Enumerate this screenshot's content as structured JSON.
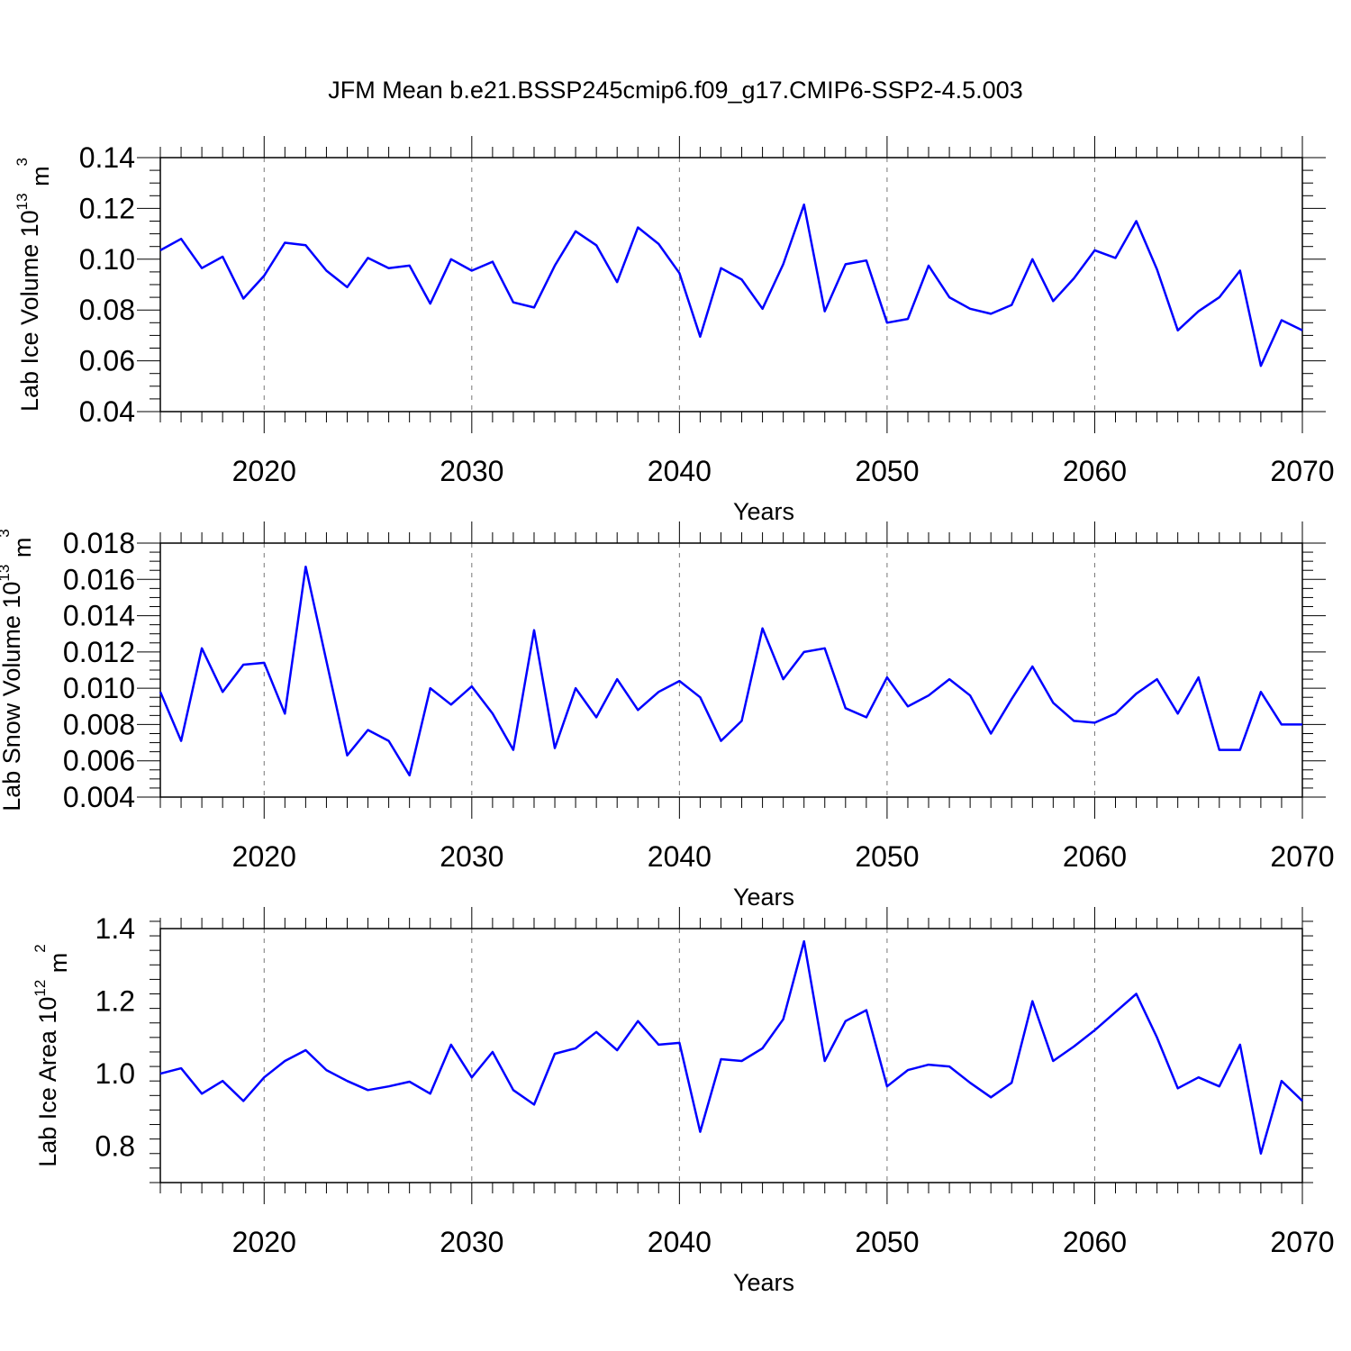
{
  "title": "JFM Mean b.e21.BSSP245cmip6.f09_g17.CMIP6-SSP2-4.5.003",
  "colors": {
    "line": "#0000ff",
    "axis": "#000000",
    "grid": "#777777"
  },
  "chart_data": [
    {
      "type": "line",
      "xlabel": "Years",
      "ylabel": "Lab Ice Volume 10",
      "ylabel_sup1": "13",
      "ylabel_mid": " m",
      "ylabel_sup2": "3",
      "xlim": [
        2015,
        2070
      ],
      "ylim": [
        0.04,
        0.14
      ],
      "xticks": [
        "2020",
        "2030",
        "2040",
        "2050",
        "2060",
        "2070"
      ],
      "yticks": [
        "0.04",
        "0.06",
        "0.08",
        "0.10",
        "0.12",
        "0.14"
      ],
      "ytick_values": [
        0.04,
        0.06,
        0.08,
        0.1,
        0.12,
        0.14
      ],
      "yminor_step": 0.005,
      "grid": "vertical dashed at major x ticks",
      "x": [
        2015,
        2016,
        2017,
        2018,
        2019,
        2020,
        2021,
        2022,
        2023,
        2024,
        2025,
        2026,
        2027,
        2028,
        2029,
        2030,
        2031,
        2032,
        2033,
        2034,
        2035,
        2036,
        2037,
        2038,
        2039,
        2040,
        2041,
        2042,
        2043,
        2044,
        2045,
        2046,
        2047,
        2048,
        2049,
        2050,
        2051,
        2052,
        2053,
        2054,
        2055,
        2056,
        2057,
        2058,
        2059,
        2060,
        2061,
        2062,
        2063,
        2064,
        2065,
        2066,
        2067,
        2068,
        2069,
        2070
      ],
      "values": [
        0.1035,
        0.108,
        0.0965,
        0.101,
        0.0845,
        0.0935,
        0.1065,
        0.1055,
        0.0955,
        0.089,
        0.1005,
        0.0965,
        0.0975,
        0.0825,
        0.1,
        0.0955,
        0.099,
        0.083,
        0.081,
        0.0975,
        0.111,
        0.1055,
        0.091,
        0.1125,
        0.106,
        0.0945,
        0.0695,
        0.0965,
        0.092,
        0.0805,
        0.098,
        0.1215,
        0.0795,
        0.098,
        0.0995,
        0.075,
        0.0765,
        0.0975,
        0.085,
        0.0805,
        0.0785,
        0.082,
        0.1,
        0.0835,
        0.0925,
        0.1035,
        0.1005,
        0.115,
        0.096,
        0.072,
        0.0795,
        0.085,
        0.0955,
        0.058,
        0.076,
        0.072
      ]
    },
    {
      "type": "line",
      "xlabel": "Years",
      "ylabel": "Lab Snow Volume 10",
      "ylabel_sup1": "13",
      "ylabel_mid": " m",
      "ylabel_sup2": "3",
      "xlim": [
        2015,
        2070
      ],
      "ylim": [
        0.004,
        0.018
      ],
      "xticks": [
        "2020",
        "2030",
        "2040",
        "2050",
        "2060",
        "2070"
      ],
      "yticks": [
        "0.004",
        "0.006",
        "0.008",
        "0.010",
        "0.012",
        "0.014",
        "0.016",
        "0.018"
      ],
      "ytick_values": [
        0.004,
        0.006,
        0.008,
        0.01,
        0.012,
        0.014,
        0.016,
        0.018
      ],
      "yminor_step": 0.0005,
      "grid": "vertical dashed at major x ticks",
      "x": [
        2015,
        2016,
        2017,
        2018,
        2019,
        2020,
        2021,
        2022,
        2023,
        2024,
        2025,
        2026,
        2027,
        2028,
        2029,
        2030,
        2031,
        2032,
        2033,
        2034,
        2035,
        2036,
        2037,
        2038,
        2039,
        2040,
        2041,
        2042,
        2043,
        2044,
        2045,
        2046,
        2047,
        2048,
        2049,
        2050,
        2051,
        2052,
        2053,
        2054,
        2055,
        2056,
        2057,
        2058,
        2059,
        2060,
        2061,
        2062,
        2063,
        2064,
        2065,
        2066,
        2067,
        2068,
        2069,
        2070
      ],
      "values": [
        0.0098,
        0.0071,
        0.0122,
        0.0098,
        0.0113,
        0.0114,
        0.0086,
        0.0167,
        0.0115,
        0.0063,
        0.0077,
        0.0071,
        0.0052,
        0.01,
        0.0091,
        0.0101,
        0.0086,
        0.0066,
        0.0132,
        0.0067,
        0.01,
        0.0084,
        0.0105,
        0.0088,
        0.0098,
        0.0104,
        0.0095,
        0.0071,
        0.0082,
        0.0133,
        0.0105,
        0.012,
        0.0122,
        0.0089,
        0.0084,
        0.0106,
        0.009,
        0.0096,
        0.0105,
        0.0096,
        0.0075,
        0.0094,
        0.0112,
        0.0092,
        0.0082,
        0.0081,
        0.0086,
        0.0097,
        0.0105,
        0.0086,
        0.0106,
        0.0066,
        0.0066,
        0.0098,
        0.008,
        0.008
      ]
    },
    {
      "type": "line",
      "xlabel": "Years",
      "ylabel": "Lab Ice Area 10",
      "ylabel_sup1": "12",
      "ylabel_mid": " m",
      "ylabel_sup2": "2",
      "xlim": [
        2015,
        2070
      ],
      "ylim": [
        0.7,
        1.4
      ],
      "xticks": [
        "2020",
        "2030",
        "2040",
        "2050",
        "2060",
        "2070"
      ],
      "yticks": [
        "0.8",
        "1.0",
        "1.2",
        "1.4"
      ],
      "ytick_values": [
        0.8,
        1.0,
        1.2,
        1.4
      ],
      "yminor_step": 0.04,
      "grid": "vertical dashed at major x ticks",
      "x": [
        2015,
        2016,
        2017,
        2018,
        2019,
        2020,
        2021,
        2022,
        2023,
        2024,
        2025,
        2026,
        2027,
        2028,
        2029,
        2030,
        2031,
        2032,
        2033,
        2034,
        2035,
        2036,
        2037,
        2038,
        2039,
        2040,
        2041,
        2042,
        2043,
        2044,
        2045,
        2046,
        2047,
        2048,
        2049,
        2050,
        2051,
        2052,
        2053,
        2054,
        2055,
        2056,
        2057,
        2058,
        2059,
        2060,
        2061,
        2062,
        2063,
        2064,
        2065,
        2066,
        2067,
        2068,
        2069,
        2070
      ],
      "values": [
        1.0,
        1.015,
        0.945,
        0.98,
        0.925,
        0.99,
        1.035,
        1.065,
        1.01,
        0.98,
        0.955,
        0.965,
        0.978,
        0.945,
        1.08,
        0.99,
        1.06,
        0.955,
        0.915,
        1.055,
        1.07,
        1.115,
        1.065,
        1.145,
        1.08,
        1.085,
        0.84,
        1.04,
        1.035,
        1.07,
        1.15,
        1.365,
        1.035,
        1.145,
        1.175,
        0.965,
        1.01,
        1.025,
        1.02,
        0.975,
        0.935,
        0.975,
        1.2,
        1.035,
        1.075,
        1.12,
        1.17,
        1.22,
        1.1,
        0.96,
        0.99,
        0.965,
        1.08,
        0.78,
        0.98,
        0.925
      ]
    }
  ]
}
